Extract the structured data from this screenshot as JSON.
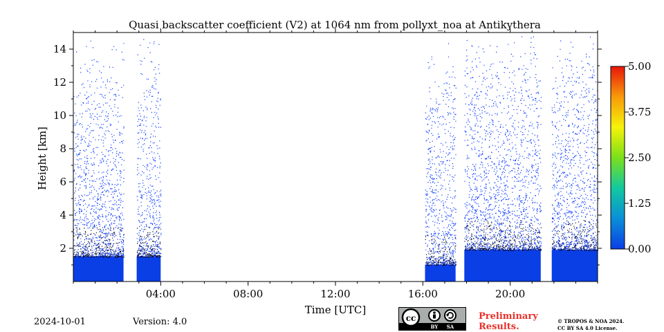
{
  "chart_data": {
    "type": "heatmap",
    "title": "Quasi backscatter coefficient (V2) at 1064 nm from pollyxt_noa at Antikythera",
    "xlabel": "Time [UTC]",
    "ylabel": "Height [km]",
    "xlim_hours": [
      0,
      24
    ],
    "ylim_km": [
      0,
      15
    ],
    "x_ticks": [
      "04:00",
      "08:00",
      "12:00",
      "16:00",
      "20:00"
    ],
    "x_tick_hours": [
      4,
      8,
      12,
      16,
      20
    ],
    "y_ticks": [
      "2",
      "4",
      "6",
      "8",
      "10",
      "12",
      "14"
    ],
    "y_tick_values": [
      2,
      4,
      6,
      8,
      10,
      12,
      14
    ],
    "colorbar": {
      "ticks": [
        "0.00",
        "1.25",
        "2.50",
        "3.75",
        "5.00"
      ],
      "tick_values": [
        0,
        1.25,
        2.5,
        3.75,
        5.0
      ],
      "range": [
        0,
        5
      ],
      "colors": [
        "#0a3fe6",
        "#0a8fd8",
        "#12c9a0",
        "#7be01a",
        "#f6f20a",
        "#f89a0a",
        "#e8160a"
      ]
    },
    "data_segments_hours": [
      [
        0.0,
        2.3
      ],
      [
        2.9,
        4.0
      ],
      [
        16.1,
        17.5
      ],
      [
        17.9,
        21.4
      ],
      [
        21.9,
        24.0
      ]
    ],
    "layer_top_km": [
      [
        0.0,
        2.3,
        1.5
      ],
      [
        2.9,
        4.0,
        1.5
      ],
      [
        16.1,
        17.5,
        1.0
      ],
      [
        17.9,
        21.4,
        1.9
      ],
      [
        21.9,
        24.0,
        1.9
      ]
    ],
    "colors": {
      "fill": "#0a3fe6",
      "speckle": "#0b3bff",
      "dark": "#0a0a1a"
    }
  },
  "footer": {
    "date": "2024-10-01",
    "version": "Version: 4.0",
    "preliminary_line1": "Preliminary",
    "preliminary_line2": "Results.",
    "copyright_line1": "© TROPOS & NOA 2024.",
    "copyright_line2": "CC BY SA 4.0 License.",
    "cc_labels": [
      "BY",
      "SA"
    ]
  }
}
